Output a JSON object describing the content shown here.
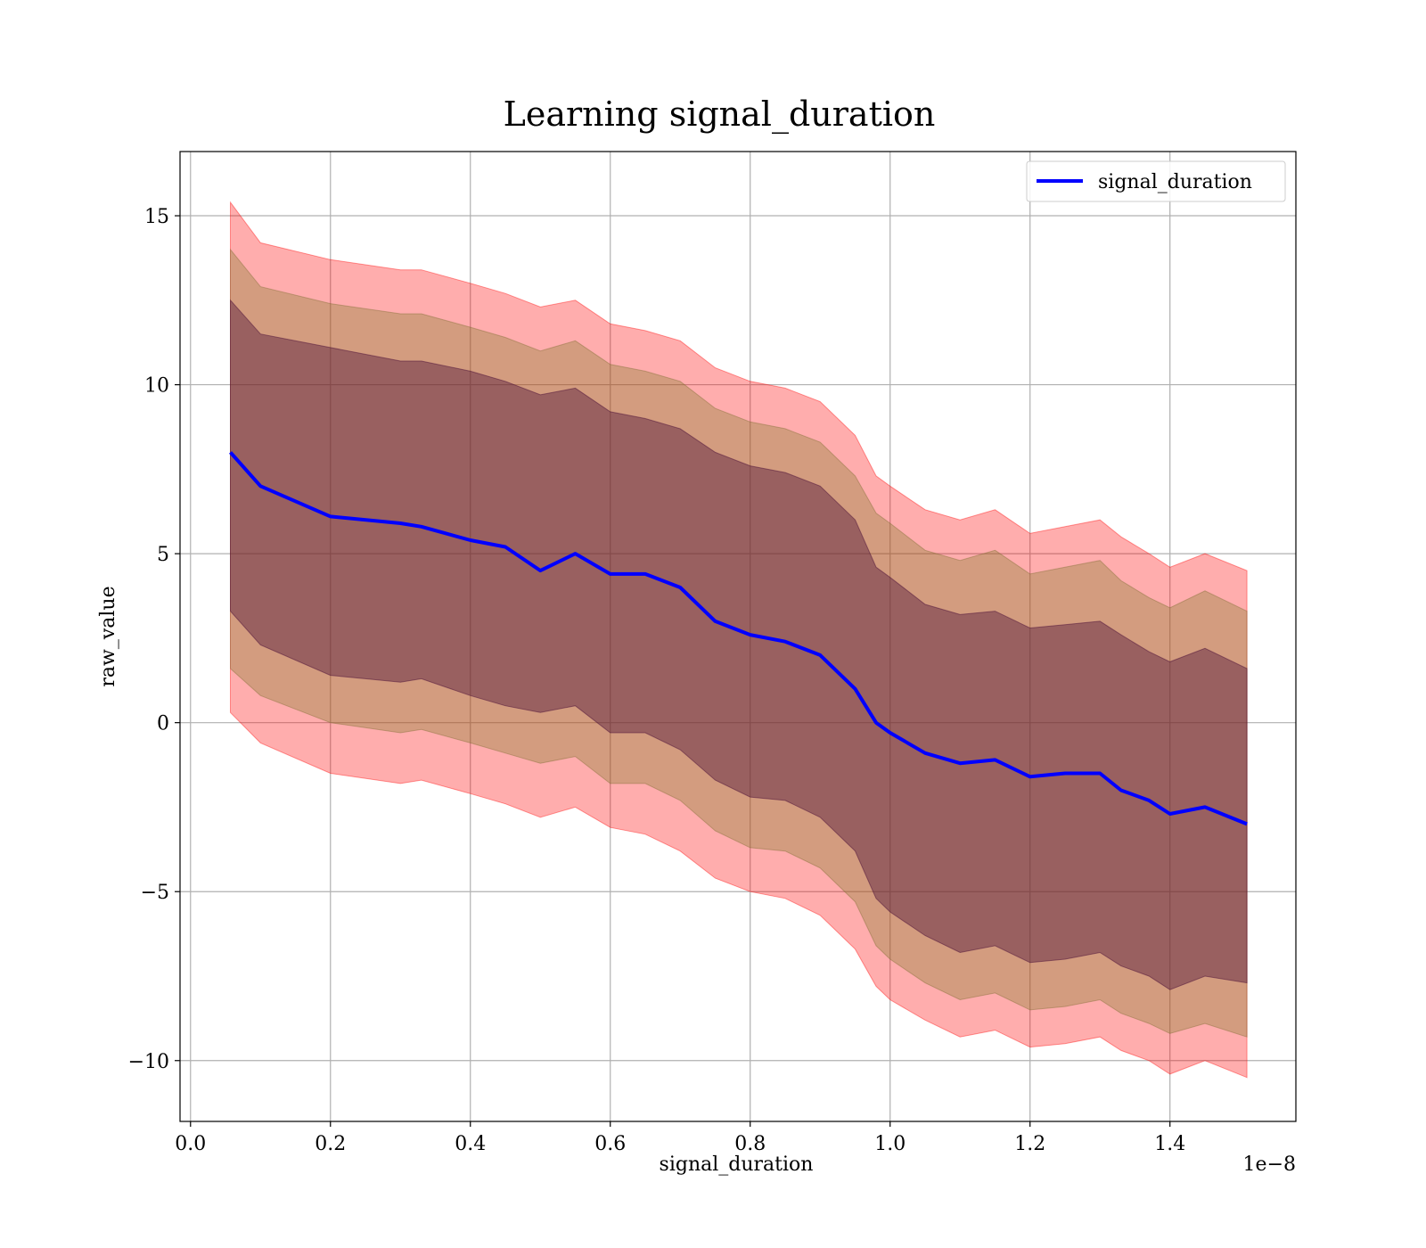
{
  "chart_data": {
    "type": "line",
    "title": "Learning signal_duration",
    "xlabel": "signal_duration",
    "ylabel": "raw_value",
    "x_offset_label": "1e−8",
    "x_tick_labels": [
      "0.0",
      "0.2",
      "0.4",
      "0.6",
      "0.8",
      "1.0",
      "1.2",
      "1.4"
    ],
    "x_ticks": [
      0.0,
      0.2,
      0.4,
      0.6,
      0.8,
      1.0,
      1.2,
      1.4
    ],
    "y_tick_labels": [
      "−10",
      "−5",
      "0",
      "5",
      "10",
      "15"
    ],
    "y_ticks": [
      -10,
      -5,
      0,
      5,
      10,
      15
    ],
    "xlim": [
      -0.015,
      1.58
    ],
    "ylim": [
      -11.8,
      16.9
    ],
    "grid": true,
    "legend": {
      "position": "top-right",
      "entries": [
        "signal_duration"
      ]
    },
    "colors": {
      "line": "#0000ff",
      "band": "#ff0000",
      "band_inner": "#4b0f37",
      "grid": "#b0b0b0"
    },
    "x": [
      0.057,
      0.1,
      0.2,
      0.3,
      0.33,
      0.4,
      0.45,
      0.5,
      0.55,
      0.6,
      0.65,
      0.7,
      0.75,
      0.8,
      0.85,
      0.9,
      0.95,
      0.98,
      1.0,
      1.05,
      1.1,
      1.15,
      1.2,
      1.25,
      1.3,
      1.33,
      1.37,
      1.4,
      1.45,
      1.51
    ],
    "mean": [
      8.0,
      7.0,
      6.1,
      5.9,
      5.8,
      5.4,
      5.2,
      4.5,
      5.0,
      4.4,
      4.4,
      4.0,
      3.0,
      2.6,
      2.4,
      2.0,
      1.0,
      0.0,
      -0.3,
      -0.9,
      -1.2,
      -1.1,
      -1.6,
      -1.5,
      -1.5,
      -2.0,
      -2.3,
      -2.7,
      -2.5,
      -3.0
    ],
    "upper3": [
      15.4,
      14.2,
      13.7,
      13.4,
      13.4,
      13.0,
      12.7,
      12.3,
      12.5,
      11.8,
      11.6,
      11.3,
      10.5,
      10.1,
      9.9,
      9.5,
      8.5,
      7.3,
      7.0,
      6.3,
      6.0,
      6.3,
      5.6,
      5.8,
      6.0,
      5.5,
      5.0,
      4.6,
      5.0,
      4.5
    ],
    "upper2": [
      14.0,
      12.9,
      12.4,
      12.1,
      12.1,
      11.7,
      11.4,
      11.0,
      11.3,
      10.6,
      10.4,
      10.1,
      9.3,
      8.9,
      8.7,
      8.3,
      7.3,
      6.2,
      5.9,
      5.1,
      4.8,
      5.1,
      4.4,
      4.6,
      4.8,
      4.2,
      3.7,
      3.4,
      3.9,
      3.3
    ],
    "upper1": [
      12.5,
      11.5,
      11.1,
      10.7,
      10.7,
      10.4,
      10.1,
      9.7,
      9.9,
      9.2,
      9.0,
      8.7,
      8.0,
      7.6,
      7.4,
      7.0,
      6.0,
      4.6,
      4.3,
      3.5,
      3.2,
      3.3,
      2.8,
      2.9,
      3.0,
      2.6,
      2.1,
      1.8,
      2.2,
      1.6
    ],
    "lower1": [
      3.3,
      2.3,
      1.4,
      1.2,
      1.3,
      0.8,
      0.5,
      0.3,
      0.5,
      -0.3,
      -0.3,
      -0.8,
      -1.7,
      -2.2,
      -2.3,
      -2.8,
      -3.8,
      -5.2,
      -5.6,
      -6.3,
      -6.8,
      -6.6,
      -7.1,
      -7.0,
      -6.8,
      -7.2,
      -7.5,
      -7.9,
      -7.5,
      -7.7
    ],
    "lower2": [
      1.6,
      0.8,
      0.0,
      -0.3,
      -0.2,
      -0.6,
      -0.9,
      -1.2,
      -1.0,
      -1.8,
      -1.8,
      -2.3,
      -3.2,
      -3.7,
      -3.8,
      -4.3,
      -5.3,
      -6.6,
      -7.0,
      -7.7,
      -8.2,
      -8.0,
      -8.5,
      -8.4,
      -8.2,
      -8.6,
      -8.9,
      -9.2,
      -8.9,
      -9.3
    ],
    "lower3": [
      0.3,
      -0.6,
      -1.5,
      -1.8,
      -1.7,
      -2.1,
      -2.4,
      -2.8,
      -2.5,
      -3.1,
      -3.3,
      -3.8,
      -4.6,
      -5.0,
      -5.2,
      -5.7,
      -6.7,
      -7.8,
      -8.2,
      -8.8,
      -9.3,
      -9.1,
      -9.6,
      -9.5,
      -9.3,
      -9.7,
      -10.0,
      -10.4,
      -10.0,
      -10.5
    ]
  }
}
